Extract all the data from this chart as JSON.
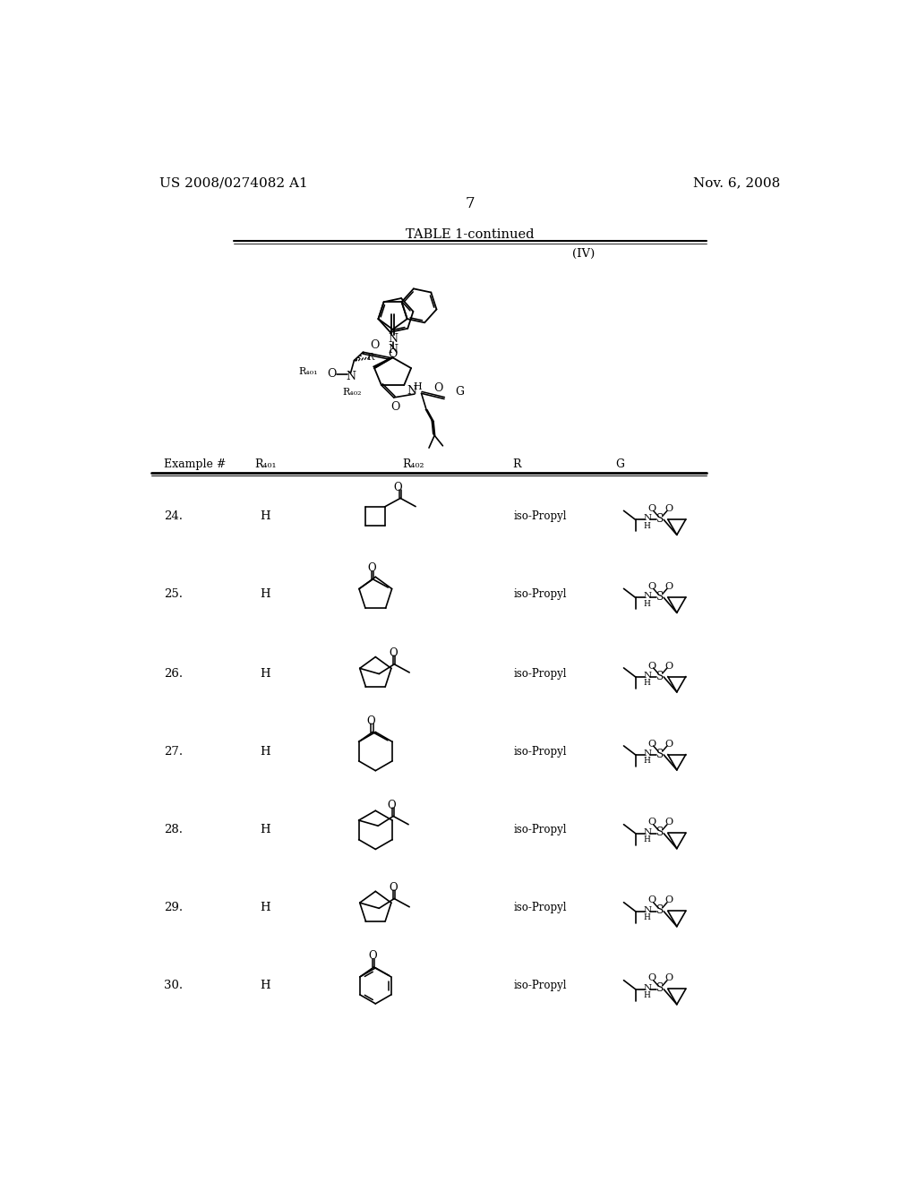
{
  "header_left": "US 2008/0274082 A1",
  "header_right": "Nov. 6, 2008",
  "page_number": "7",
  "table_title": "TABLE 1-continued",
  "label_iv": "(IV)",
  "col_headers": [
    "Example #",
    "R401",
    "R402",
    "R",
    "G"
  ],
  "examples": [
    {
      "num": "24.",
      "r401": "H",
      "r": "iso-Propyl"
    },
    {
      "num": "25.",
      "r401": "H",
      "r": "iso-Propyl"
    },
    {
      "num": "26.",
      "r401": "H",
      "r": "iso-Propyl"
    },
    {
      "num": "27.",
      "r401": "H",
      "r": "iso-Propyl"
    },
    {
      "num": "28.",
      "r401": "H",
      "r": "iso-Propyl"
    },
    {
      "num": "29.",
      "r401": "H",
      "r": "iso-Propyl"
    },
    {
      "num": "30.",
      "r401": "H",
      "r": "iso-Propyl"
    }
  ],
  "bg_color": "#ffffff",
  "text_color": "#000000"
}
